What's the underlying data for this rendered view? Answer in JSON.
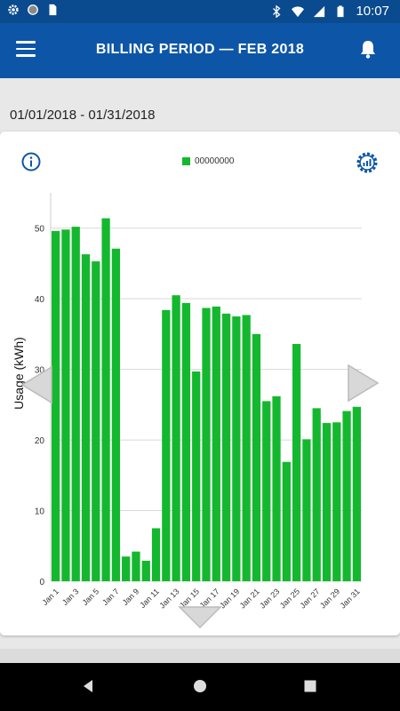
{
  "status_bar": {
    "time": "10:07",
    "left_icons": [
      "gear-icon",
      "circle-icon",
      "sd-card-icon"
    ],
    "right_icons": [
      "bluetooth-icon",
      "wifi-icon",
      "signal-icon",
      "battery-icon"
    ]
  },
  "app_bar": {
    "title": "BILLING PERIOD  —  FEB 2018",
    "menu_icon": "hamburger-menu-icon",
    "notification_icon": "bell-icon"
  },
  "date_range": "01/01/2018 - 01/31/2018",
  "card": {
    "info_icon": "info-icon",
    "settings_icon": "chart-settings-icon",
    "nav_icons": [
      "arrow-left-icon",
      "arrow-right-icon",
      "arrow-down-icon"
    ]
  },
  "chart_data": {
    "type": "bar",
    "title": "",
    "xlabel": "",
    "ylabel": "Usage (kWh)",
    "ylim": [
      0,
      55
    ],
    "yticks": [
      0,
      10,
      20,
      30,
      40,
      50
    ],
    "grid": true,
    "legend_position": "top-center",
    "color": "#14b82e",
    "categories": [
      "Jan 1",
      "Jan 2",
      "Jan 3",
      "Jan 4",
      "Jan 5",
      "Jan 6",
      "Jan 7",
      "Jan 8",
      "Jan 9",
      "Jan 10",
      "Jan 11",
      "Jan 12",
      "Jan 13",
      "Jan 14",
      "Jan 15",
      "Jan 16",
      "Jan 17",
      "Jan 18",
      "Jan 19",
      "Jan 20",
      "Jan 21",
      "Jan 22",
      "Jan 23",
      "Jan 24",
      "Jan 25",
      "Jan 26",
      "Jan 27",
      "Jan 28",
      "Jan 29",
      "Jan 30",
      "Jan 31"
    ],
    "xtick_labels": [
      "Jan 1",
      "Jan 3",
      "Jan 5",
      "Jan 7",
      "Jan 9",
      "Jan 11",
      "Jan 13",
      "Jan 15",
      "Jan 17",
      "Jan 19",
      "Jan 21",
      "Jan 23",
      "Jan 25",
      "Jan 27",
      "Jan 29",
      "Jan 31"
    ],
    "series": [
      {
        "name": "00000000",
        "values": [
          49.6,
          49.8,
          50.2,
          46.3,
          45.3,
          51.4,
          47.1,
          3.5,
          4.2,
          2.9,
          7.5,
          38.4,
          40.5,
          39.4,
          29.7,
          38.7,
          38.9,
          37.9,
          37.5,
          37.7,
          35.0,
          25.5,
          26.2,
          16.9,
          33.6,
          20.1,
          24.5,
          22.4,
          22.5,
          24.1,
          24.7
        ]
      }
    ]
  }
}
